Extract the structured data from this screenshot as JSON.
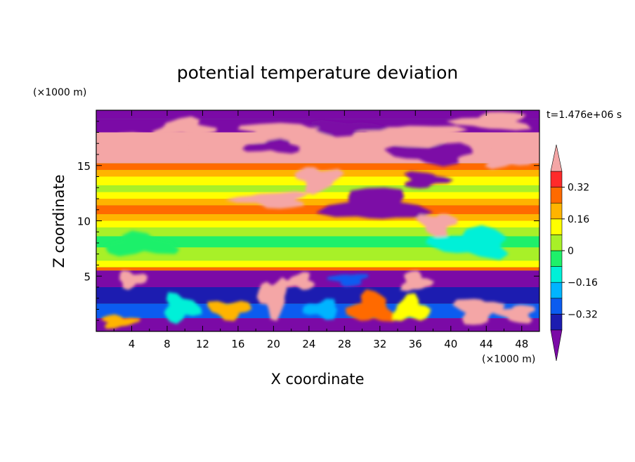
{
  "chart_data": {
    "type": "heatmap",
    "title": "potential temperature deviation",
    "xlabel": "X coordinate",
    "ylabel": "Z coordinate",
    "x_unit": "(×1000 m)",
    "y_unit": "(×1000 m)",
    "time_label": "t=1.476e+06 s",
    "xlim": [
      0,
      50
    ],
    "ylim": [
      0,
      20
    ],
    "x_ticks": [
      4,
      8,
      12,
      16,
      20,
      24,
      28,
      32,
      36,
      40,
      44,
      48
    ],
    "y_ticks": [
      5,
      10,
      15
    ],
    "colorbar": {
      "levels": [
        -0.4,
        -0.32,
        -0.24,
        -0.16,
        -0.08,
        0,
        0.08,
        0.16,
        0.24,
        0.32,
        0.4
      ],
      "labels": [
        "0.32",
        "0.16",
        "0",
        "−0.16",
        "−0.32"
      ],
      "label_values": [
        0.32,
        0.16,
        0,
        -0.16,
        -0.32
      ],
      "colors": [
        "#7b0aa6",
        "#1c1cb0",
        "#0b5cf0",
        "#00b4ff",
        "#00f0d8",
        "#1ef06a",
        "#a8f028",
        "#ffff00",
        "#ffb400",
        "#ff6a00",
        "#ff2a2a",
        "#f4a6a6"
      ]
    },
    "bands": [
      {
        "z": [
          19.2,
          20.0
        ],
        "color": "#7b0aa6"
      },
      {
        "z": [
          18.0,
          19.2
        ],
        "color": "#7b0aa6"
      },
      {
        "z": [
          16.0,
          18.0
        ],
        "color": "#f4a6a6"
      },
      {
        "z": [
          15.2,
          16.0
        ],
        "color": "#f4a6a6"
      },
      {
        "z": [
          14.6,
          15.2
        ],
        "color": "#ff6a00"
      },
      {
        "z": [
          14.0,
          14.6
        ],
        "color": "#ffb400"
      },
      {
        "z": [
          13.2,
          14.0
        ],
        "color": "#ffff00"
      },
      {
        "z": [
          12.6,
          13.2
        ],
        "color": "#a8f028"
      },
      {
        "z": [
          12.0,
          12.6
        ],
        "color": "#ffff00"
      },
      {
        "z": [
          11.4,
          12.0
        ],
        "color": "#ffb400"
      },
      {
        "z": [
          10.6,
          11.4
        ],
        "color": "#ff6a00"
      },
      {
        "z": [
          10.0,
          10.6
        ],
        "color": "#ffb400"
      },
      {
        "z": [
          9.4,
          10.0
        ],
        "color": "#ffff00"
      },
      {
        "z": [
          8.6,
          9.4
        ],
        "color": "#a8f028"
      },
      {
        "z": [
          7.6,
          8.6
        ],
        "color": "#1ef06a"
      },
      {
        "z": [
          6.4,
          7.6
        ],
        "color": "#a8f028"
      },
      {
        "z": [
          5.8,
          6.4
        ],
        "color": "#ffff00"
      },
      {
        "z": [
          5.5,
          5.8
        ],
        "color": "#ff6a00"
      },
      {
        "z": [
          4.0,
          5.5
        ],
        "color": "#7b0aa6"
      },
      {
        "z": [
          2.5,
          4.0
        ],
        "color": "#1c1cb0"
      },
      {
        "z": [
          1.2,
          2.5
        ],
        "color": "#0b5cf0"
      },
      {
        "z": [
          0.0,
          1.2
        ],
        "color": "#7b0aa6"
      }
    ],
    "features": [
      {
        "shape": "blob",
        "x": [
          6,
          14
        ],
        "z": [
          17.4,
          19.4
        ],
        "color": "#f4a6a6"
      },
      {
        "shape": "blob",
        "x": [
          14,
          30
        ],
        "z": [
          17.0,
          19.0
        ],
        "color": "#f4a6a6"
      },
      {
        "shape": "blob",
        "x": [
          30,
          42
        ],
        "z": [
          16.6,
          19.0
        ],
        "color": "#f4a6a6"
      },
      {
        "shape": "blob",
        "x": [
          40,
          50
        ],
        "z": [
          18.0,
          20.0
        ],
        "color": "#f4a6a6"
      },
      {
        "shape": "blob",
        "x": [
          0,
          10
        ],
        "z": [
          16.0,
          18.0
        ],
        "color": "#f4a6a6"
      },
      {
        "shape": "blob",
        "x": [
          23,
          33
        ],
        "z": [
          17.6,
          19.2
        ],
        "color": "#7b0aa6"
      },
      {
        "shape": "blob",
        "x": [
          32,
          44
        ],
        "z": [
          15.0,
          17.2
        ],
        "color": "#7b0aa6"
      },
      {
        "shape": "blob",
        "x": [
          16,
          24
        ],
        "z": [
          16.0,
          17.4
        ],
        "color": "#7b0aa6"
      },
      {
        "shape": "blob",
        "x": [
          43,
          50
        ],
        "z": [
          14.6,
          16.6
        ],
        "color": "#f4a6a6"
      },
      {
        "shape": "blob",
        "x": [
          22,
          28
        ],
        "z": [
          12.4,
          15.2
        ],
        "color": "#f4a6a6"
      },
      {
        "shape": "blob",
        "x": [
          15,
          25
        ],
        "z": [
          11.0,
          12.8
        ],
        "color": "#f4a6a6"
      },
      {
        "shape": "blob",
        "x": [
          25,
          38
        ],
        "z": [
          9.6,
          13.2
        ],
        "color": "#7b0aa6"
      },
      {
        "shape": "blob",
        "x": [
          34,
          40
        ],
        "z": [
          12.8,
          14.6
        ],
        "color": "#7b0aa6"
      },
      {
        "shape": "blob",
        "x": [
          36,
          41
        ],
        "z": [
          8.4,
          11.0
        ],
        "color": "#f4a6a6"
      },
      {
        "shape": "blob",
        "x": [
          37,
          48
        ],
        "z": [
          6.4,
          9.6
        ],
        "color": "#00f0d8"
      },
      {
        "shape": "blob",
        "x": [
          0,
          10
        ],
        "z": [
          6.6,
          9.0
        ],
        "color": "#1ef06a"
      },
      {
        "shape": "blob",
        "x": [
          2,
          6
        ],
        "z": [
          3.8,
          5.6
        ],
        "color": "#f4a6a6"
      },
      {
        "shape": "blob",
        "x": [
          18,
          22
        ],
        "z": [
          1.0,
          5.2
        ],
        "color": "#f4a6a6"
      },
      {
        "shape": "blob",
        "x": [
          21,
          25
        ],
        "z": [
          3.6,
          5.4
        ],
        "color": "#f4a6a6"
      },
      {
        "shape": "blob",
        "x": [
          34,
          38
        ],
        "z": [
          3.4,
          5.6
        ],
        "color": "#f4a6a6"
      },
      {
        "shape": "blob",
        "x": [
          40,
          46
        ],
        "z": [
          0.4,
          3.4
        ],
        "color": "#f4a6a6"
      },
      {
        "shape": "blob",
        "x": [
          45,
          50
        ],
        "z": [
          0.6,
          2.6
        ],
        "color": "#f4a6a6"
      },
      {
        "shape": "blob",
        "x": [
          28,
          34
        ],
        "z": [
          0.4,
          3.8
        ],
        "color": "#ff6a00"
      },
      {
        "shape": "blob",
        "x": [
          7,
          12
        ],
        "z": [
          0.6,
          3.6
        ],
        "color": "#00f0d8"
      },
      {
        "shape": "blob",
        "x": [
          12,
          18
        ],
        "z": [
          1.0,
          3.0
        ],
        "color": "#ffb400"
      },
      {
        "shape": "blob",
        "x": [
          23,
          28
        ],
        "z": [
          1.0,
          3.0
        ],
        "color": "#00b4ff"
      },
      {
        "shape": "blob",
        "x": [
          33,
          38
        ],
        "z": [
          0.6,
          3.4
        ],
        "color": "#ffff00"
      },
      {
        "shape": "blob",
        "x": [
          0,
          5
        ],
        "z": [
          0.2,
          1.6
        ],
        "color": "#ffb400"
      },
      {
        "shape": "blob",
        "x": [
          26,
          31
        ],
        "z": [
          4.0,
          5.4
        ],
        "color": "#0b5cf0"
      }
    ]
  }
}
